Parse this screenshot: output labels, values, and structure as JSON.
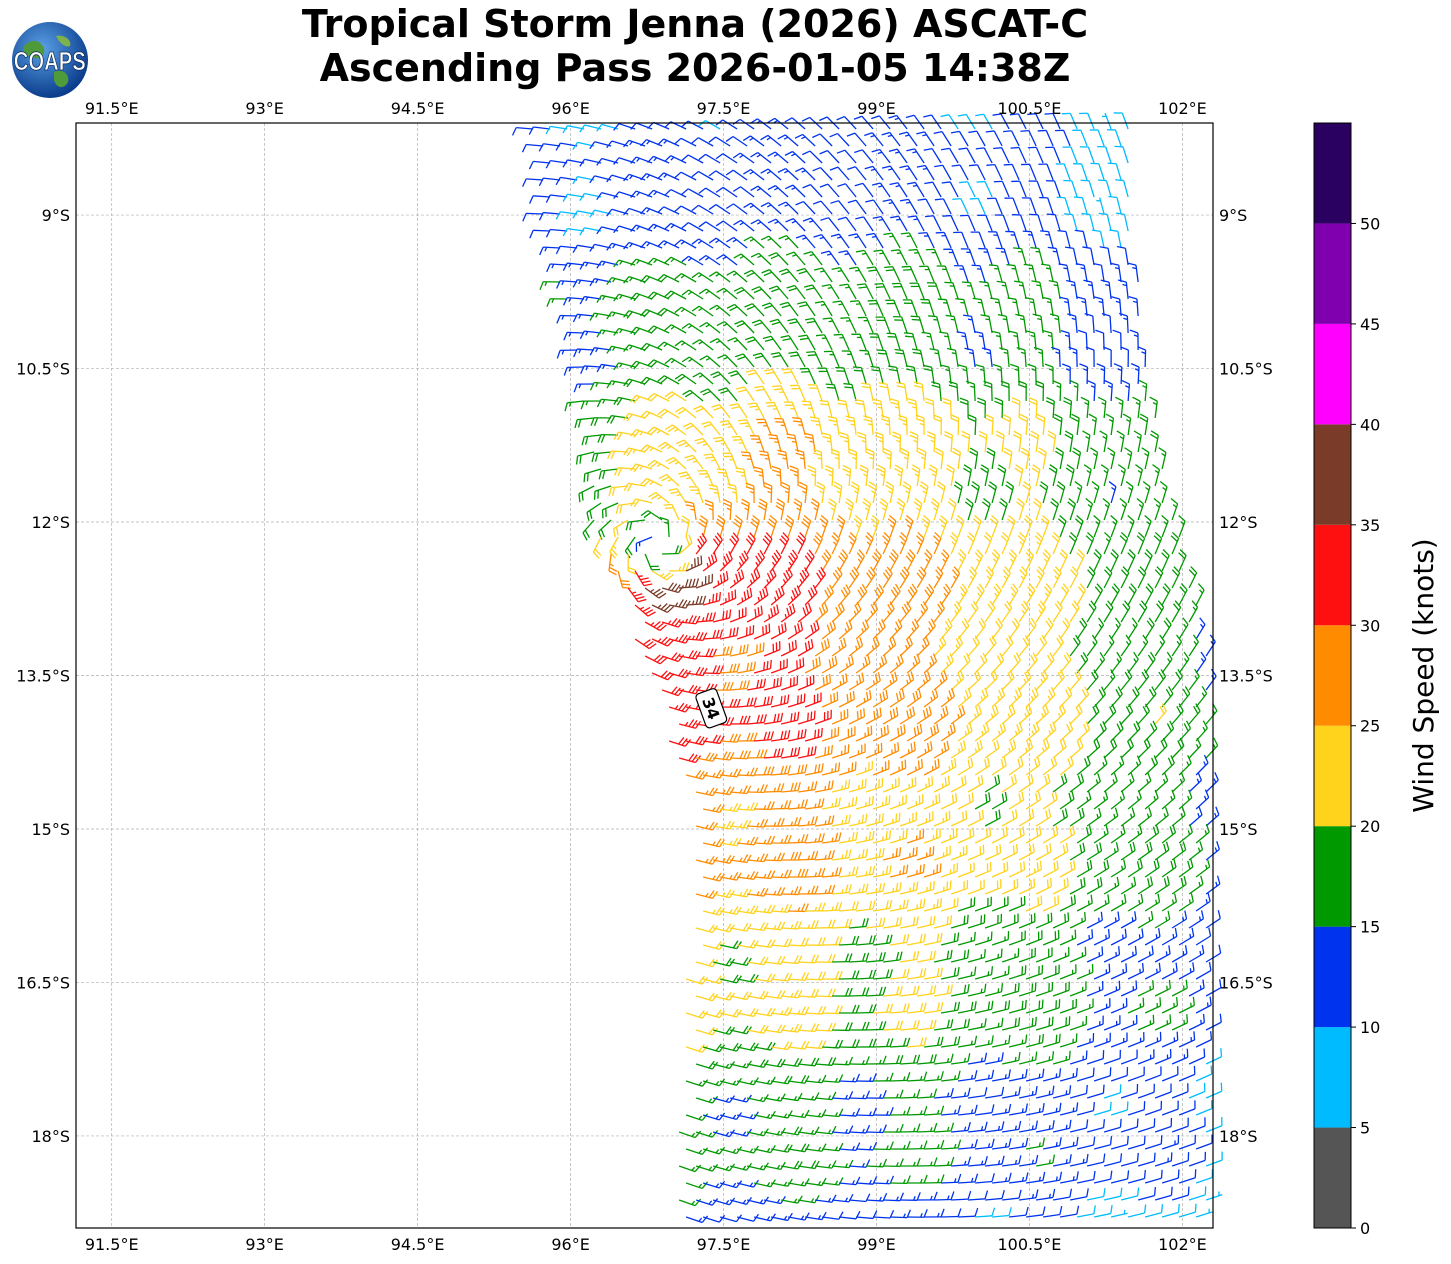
{
  "title": {
    "line1": "Tropical Storm Jenna (2026) ASCAT-C",
    "line2": "Ascending Pass 2026-01-05 14:38Z"
  },
  "logo": {
    "text": "COAPS",
    "icon": "globe-icon"
  },
  "map": {
    "lon_ticks": [
      "91.5°E",
      "93°E",
      "94.5°E",
      "96°E",
      "97.5°E",
      "99°E",
      "100.5°E",
      "102°E"
    ],
    "lat_ticks": [
      "9°S",
      "10.5°S",
      "12°S",
      "13.5°S",
      "15°S",
      "16.5°S",
      "18°S"
    ],
    "lon_values": [
      91.5,
      93,
      94.5,
      96,
      97.5,
      99,
      100.5,
      102
    ],
    "lat_values": [
      -9,
      -10.5,
      -12,
      -13.5,
      -15,
      -16.5,
      -18
    ],
    "lon_range": [
      91.15,
      102.3
    ],
    "lat_range": [
      -8.1,
      -18.9
    ],
    "grid": "dashed",
    "swath_polygon_lonlat": [
      [
        95.6,
        -8.1
      ],
      [
        101.5,
        -8.1
      ],
      [
        101.6,
        -10.2
      ],
      [
        102.3,
        -13.6
      ],
      [
        102.3,
        -18.9
      ],
      [
        97.0,
        -18.9
      ],
      [
        97.2,
        -15.0
      ],
      [
        96.8,
        -13.6
      ],
      [
        96.2,
        -12.0
      ],
      [
        96.1,
        -10.5
      ],
      [
        95.7,
        -9.0
      ]
    ],
    "max_wind_label": "34",
    "max_wind_label_position_lonlat": [
      97.38,
      -13.82
    ]
  },
  "colorbar": {
    "label": "Wind Speed (knots)",
    "ticks": [
      "0",
      "5",
      "10",
      "15",
      "20",
      "25",
      "30",
      "35",
      "40",
      "45",
      "50"
    ],
    "bins": [
      {
        "min": 0,
        "max": 5,
        "color": "#555555"
      },
      {
        "min": 5,
        "max": 10,
        "color": "#00bbff"
      },
      {
        "min": 10,
        "max": 15,
        "color": "#0033ee"
      },
      {
        "min": 15,
        "max": 20,
        "color": "#009900"
      },
      {
        "min": 20,
        "max": 25,
        "color": "#ffd21c"
      },
      {
        "min": 25,
        "max": 30,
        "color": "#ff8c00"
      },
      {
        "min": 30,
        "max": 35,
        "color": "#ff1010"
      },
      {
        "min": 35,
        "max": 40,
        "color": "#7a3c28"
      },
      {
        "min": 40,
        "max": 45,
        "color": "#ff00ff"
      },
      {
        "min": 45,
        "max": 50,
        "color": "#8000b0"
      },
      {
        "min": 50,
        "max": 55,
        "color": "#2a0060"
      }
    ]
  },
  "wind_field": {
    "center_lonlat": [
      96.85,
      -12.2
    ],
    "grid_spacing_deg": 0.22
  }
}
